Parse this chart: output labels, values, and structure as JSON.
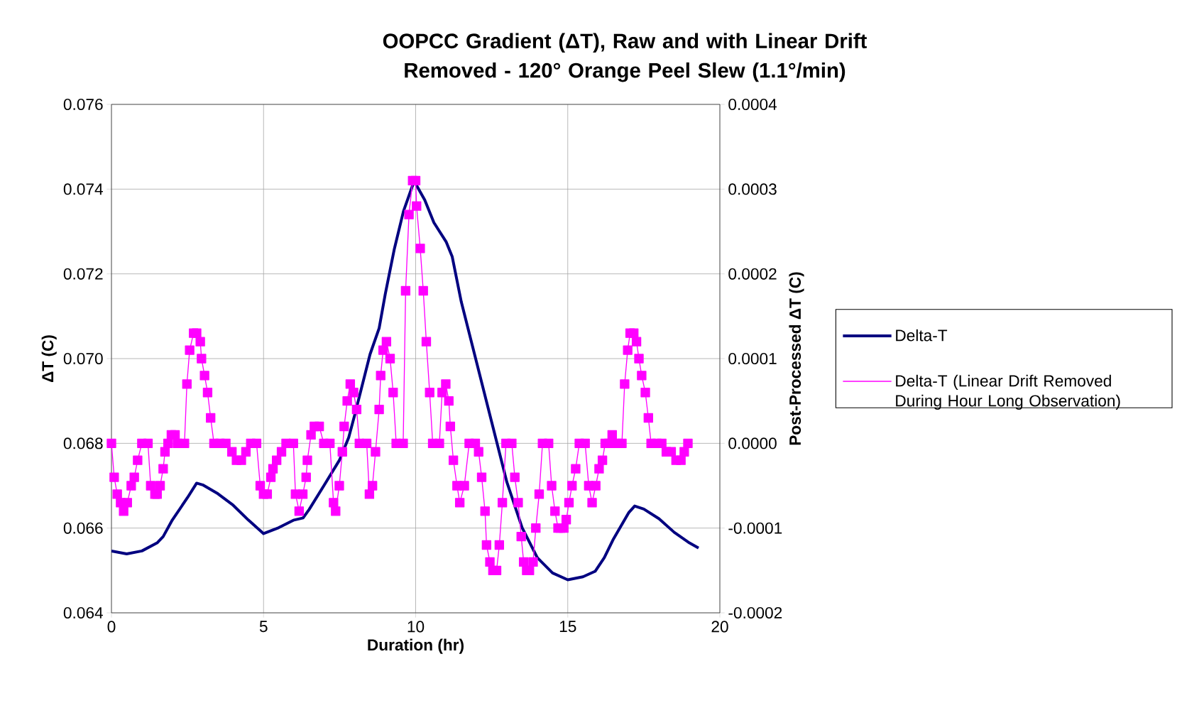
{
  "chart_data": {
    "type": "line",
    "title": "OOPCC Gradient (ΔT), Raw and with Linear Drift Removed - 120° Orange Peel Slew (1.1°/min)",
    "xlabel": "Duration (hr)",
    "ylabel": "ΔT (C)",
    "y2label": "Post-Processed ΔT (C)",
    "xlim": [
      0,
      20
    ],
    "xticks": [
      0,
      5,
      10,
      15,
      20
    ],
    "ylim": [
      0.064,
      0.076
    ],
    "yticks": [
      0.064,
      0.066,
      0.068,
      {
        "value": 0.07,
        "label": "0.070"
      },
      0.072,
      0.074,
      0.076
    ],
    "y2lim": [
      -0.0002,
      0.0004
    ],
    "y2ticks": [
      -0.0002,
      -0.0001,
      {
        "value": 0,
        "label": "0.0000"
      },
      0.0001,
      0.0002,
      0.0003,
      0.0004
    ],
    "grid": true,
    "legend": "right",
    "series": [
      {
        "name": "Delta-T",
        "color": "#000080",
        "marker": "none",
        "x": [
          0,
          0.5,
          1.0,
          1.5,
          1.7,
          2.0,
          2.5,
          2.8,
          3.0,
          3.5,
          4.0,
          4.5,
          5.0,
          5.5,
          6.0,
          6.3,
          6.5,
          7.0,
          7.5,
          7.8,
          8.0,
          8.5,
          8.8,
          9.0,
          9.3,
          9.6,
          9.95,
          10.3,
          10.6,
          11.0,
          11.2,
          11.5,
          12.0,
          12.5,
          13.0,
          13.5,
          14.0,
          14.5,
          15.0,
          15.5,
          15.9,
          16.2,
          16.5,
          17.0,
          17.2,
          17.5,
          18.0,
          18.5,
          19.0,
          19.3
        ],
        "values": [
          0.06546,
          0.06539,
          0.06546,
          0.06565,
          0.0658,
          0.06619,
          0.06672,
          0.06706,
          0.06702,
          0.06681,
          0.06654,
          0.06619,
          0.06587,
          0.06601,
          0.06619,
          0.06624,
          0.06644,
          0.06702,
          0.06761,
          0.06814,
          0.06868,
          0.0701,
          0.07072,
          0.07152,
          0.07259,
          0.07348,
          0.07419,
          0.07374,
          0.07321,
          0.07276,
          0.07241,
          0.07134,
          0.06992,
          0.0685,
          0.06708,
          0.06601,
          0.0653,
          0.06494,
          0.06478,
          0.06485,
          0.06498,
          0.0653,
          0.06574,
          0.06636,
          0.06652,
          0.06645,
          0.06622,
          0.0659,
          0.06565,
          0.06553
        ]
      },
      {
        "name": "Delta-T (Linear Drift Removed During Hour Long Observation)",
        "color": "#ff00ff",
        "marker": "square",
        "axis": "y2",
        "x": [
          0,
          0.09,
          0.19,
          0.3,
          0.4,
          0.52,
          0.65,
          0.75,
          0.86,
          1.0,
          1.2,
          1.29,
          1.43,
          1.5,
          1.6,
          1.7,
          1.76,
          1.86,
          1.97,
          2.09,
          2.17,
          2.4,
          2.48,
          2.57,
          2.7,
          2.8,
          2.92,
          2.96,
          3.06,
          3.16,
          3.26,
          3.37,
          3.57,
          3.76,
          3.96,
          4.11,
          4.27,
          4.42,
          4.58,
          4.77,
          4.89,
          5.0,
          5.12,
          5.24,
          5.31,
          5.43,
          5.59,
          5.74,
          5.98,
          6.05,
          6.17,
          6.29,
          6.4,
          6.44,
          6.56,
          6.67,
          6.83,
          6.98,
          7.18,
          7.3,
          7.37,
          7.49,
          7.59,
          7.65,
          7.75,
          7.85,
          7.96,
          8.06,
          8.15,
          8.39,
          8.48,
          8.58,
          8.68,
          8.8,
          8.85,
          8.93,
          9.04,
          9.16,
          9.26,
          9.36,
          9.59,
          9.67,
          9.78,
          9.9,
          10.0,
          10.03,
          10.15,
          10.25,
          10.35,
          10.46,
          10.56,
          10.78,
          10.87,
          10.99,
          11.09,
          11.14,
          11.24,
          11.36,
          11.45,
          11.6,
          11.76,
          11.96,
          12.07,
          12.17,
          12.28,
          12.33,
          12.44,
          12.54,
          12.66,
          12.75,
          12.85,
          12.97,
          13.16,
          13.26,
          13.37,
          13.47,
          13.55,
          13.65,
          13.74,
          13.86,
          13.95,
          14.06,
          14.17,
          14.37,
          14.47,
          14.58,
          14.68,
          14.76,
          14.87,
          14.95,
          15.04,
          15.14,
          15.26,
          15.38,
          15.57,
          15.69,
          15.8,
          15.92,
          16.03,
          16.14,
          16.23,
          16.35,
          16.46,
          16.62,
          16.78,
          16.87,
          16.97,
          17.05,
          17.17,
          17.26,
          17.34,
          17.43,
          17.55,
          17.65,
          17.74,
          17.93,
          18.09,
          18.24,
          18.4,
          18.56,
          18.72,
          18.83,
          18.95
        ],
        "values": [
          0,
          -4e-05,
          -6e-05,
          -7e-05,
          -8e-05,
          -7e-05,
          -5e-05,
          -4e-05,
          -2e-05,
          0,
          0,
          -5e-05,
          -6e-05,
          -6e-05,
          -5e-05,
          -3e-05,
          -1e-05,
          0,
          1e-05,
          1e-05,
          0,
          0,
          7e-05,
          0.00011,
          0.00013,
          0.00013,
          0.00012,
          0.0001,
          8e-05,
          6e-05,
          3e-05,
          0,
          0,
          0,
          -1e-05,
          -2e-05,
          -2e-05,
          -1e-05,
          0,
          0,
          -5e-05,
          -6e-05,
          -6e-05,
          -4e-05,
          -3e-05,
          -2e-05,
          -1e-05,
          0,
          0,
          -6e-05,
          -8e-05,
          -6e-05,
          -4e-05,
          -2e-05,
          1e-05,
          2e-05,
          2e-05,
          0,
          0,
          -7e-05,
          -8e-05,
          -5e-05,
          -1e-05,
          2e-05,
          5e-05,
          7e-05,
          6e-05,
          4e-05,
          0,
          0,
          -6e-05,
          -5e-05,
          -1e-05,
          4e-05,
          8e-05,
          0.00011,
          0.00012,
          0.0001,
          6e-05,
          0,
          0,
          0.00018,
          0.00027,
          0.00031,
          0.00031,
          0.00028,
          0.00023,
          0.00018,
          0.00012,
          6e-05,
          0,
          0,
          6e-05,
          7e-05,
          5e-05,
          2e-05,
          -2e-05,
          -5e-05,
          -7e-05,
          -5e-05,
          0,
          0,
          -1e-05,
          -4e-05,
          -8e-05,
          -0.00012,
          -0.00014,
          -0.00015,
          -0.00015,
          -0.00012,
          -7e-05,
          0,
          0,
          -4e-05,
          -7e-05,
          -0.00011,
          -0.00014,
          -0.00015,
          -0.00015,
          -0.00014,
          -0.0001,
          -6e-05,
          0,
          0,
          -5e-05,
          -8e-05,
          -0.0001,
          -0.0001,
          -0.0001,
          -9e-05,
          -7e-05,
          -5e-05,
          -3e-05,
          0,
          0,
          -5e-05,
          -7e-05,
          -5e-05,
          -3e-05,
          -2e-05,
          0,
          0,
          1e-05,
          0,
          0,
          7e-05,
          0.00011,
          0.00013,
          0.00013,
          0.00012,
          0.0001,
          8e-05,
          6e-05,
          3e-05,
          0,
          0,
          0,
          -1e-05,
          -1e-05,
          -2e-05,
          -2e-05,
          -1e-05,
          0
        ]
      }
    ]
  }
}
